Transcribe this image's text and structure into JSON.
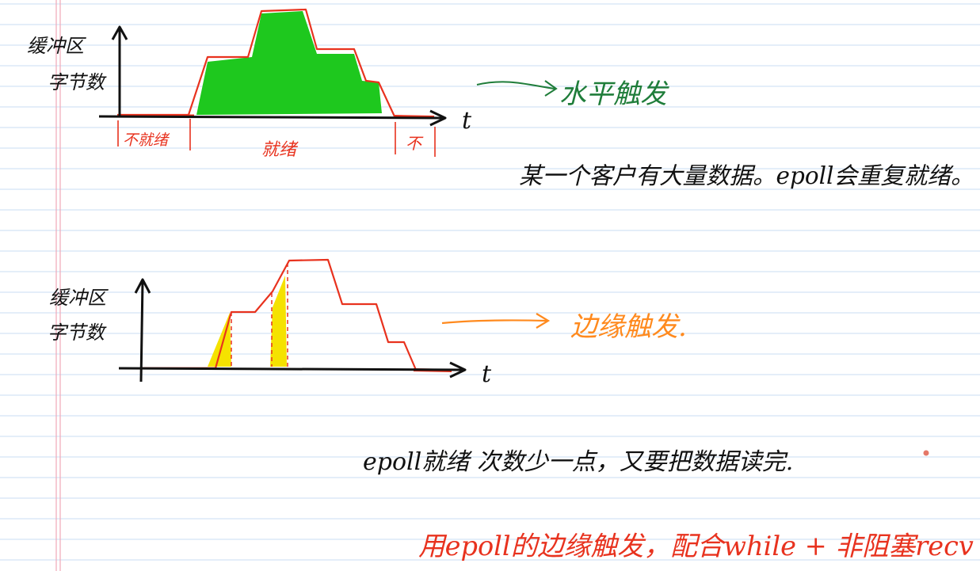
{
  "colors": {
    "paper": "#ffffff",
    "rule_line": "#c9dcf3",
    "margin_line": "#f0a8b8",
    "ink": "#111111",
    "red": "#e8321e",
    "green_fill": "#1ec81e",
    "green_text": "#1f7d3a",
    "yellow_fill": "#f5e200",
    "orange": "#ff8a1e"
  },
  "diagram_top": {
    "y_axis_label_line1": "缓冲区",
    "y_axis_label_line2": "字节数",
    "x_axis_label": "t",
    "segment_not_ready_left": "不就绪",
    "segment_ready": "就绪",
    "segment_not_ready_right": "不",
    "arrow_label": "水平触发",
    "note": "某一个客户有大量数据。epoll会重复就绪。"
  },
  "diagram_bottom": {
    "y_axis_label_line1": "缓冲区",
    "y_axis_label_line2": "字节数",
    "x_axis_label": "t",
    "arrow_label": "边缘触发.",
    "note": "epoll就绪 次数少一点，又要把数据读完."
  },
  "conclusion": "用epoll的边缘触发，配合while + 非阻塞recv"
}
